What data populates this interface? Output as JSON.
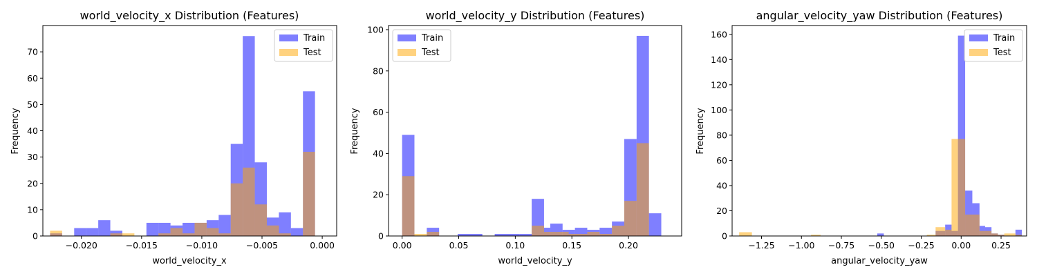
{
  "figure": {
    "train_color": "#0000ff",
    "test_color": "#ffa500"
  },
  "chart_data": [
    {
      "type": "histogram",
      "title": "world_velocity_x Distribution (Features)",
      "xlabel": "world_velocity_x",
      "ylabel": "Frequency",
      "xlim": [
        -0.0232,
        0.0012
      ],
      "ylim": [
        0,
        80
      ],
      "xticks": [
        -0.02,
        -0.015,
        -0.01,
        -0.005,
        0.0
      ],
      "xtick_labels": [
        "−0.020",
        "−0.015",
        "−0.010",
        "−0.005",
        "0.000"
      ],
      "yticks": [
        0,
        10,
        20,
        30,
        40,
        50,
        60,
        70
      ],
      "legend": "top-right",
      "series": [
        {
          "name": "Train",
          "color": "#0000ff",
          "opacity": 0.5,
          "bins": [
            [
              -0.0226,
              -0.0216,
              1
            ],
            [
              -0.0216,
              -0.0206,
              0
            ],
            [
              -0.0206,
              -0.0196,
              3
            ],
            [
              -0.0196,
              -0.0186,
              3
            ],
            [
              -0.0186,
              -0.0176,
              6
            ],
            [
              -0.0176,
              -0.0166,
              2
            ],
            [
              -0.0166,
              -0.0156,
              0
            ],
            [
              -0.0156,
              -0.0146,
              0
            ],
            [
              -0.0146,
              -0.0136,
              5
            ],
            [
              -0.0136,
              -0.0126,
              5
            ],
            [
              -0.0126,
              -0.0116,
              4
            ],
            [
              -0.0116,
              -0.0106,
              5
            ],
            [
              -0.0106,
              -0.0096,
              5
            ],
            [
              -0.0096,
              -0.0086,
              6
            ],
            [
              -0.0086,
              -0.0076,
              8
            ],
            [
              -0.0076,
              -0.0066,
              35
            ],
            [
              -0.0066,
              -0.0056,
              76
            ],
            [
              -0.0056,
              -0.0046,
              28
            ],
            [
              -0.0046,
              -0.0036,
              7
            ],
            [
              -0.0036,
              -0.0026,
              9
            ],
            [
              -0.0026,
              -0.0016,
              3
            ],
            [
              -0.0016,
              -0.0006,
              55
            ]
          ]
        },
        {
          "name": "Test",
          "color": "#ffa500",
          "opacity": 0.5,
          "bins": [
            [
              -0.0226,
              -0.0216,
              2
            ],
            [
              -0.0176,
              -0.0156,
              1
            ],
            [
              -0.0136,
              -0.0126,
              1
            ],
            [
              -0.0126,
              -0.0116,
              3
            ],
            [
              -0.0116,
              -0.0106,
              1
            ],
            [
              -0.0106,
              -0.0096,
              5
            ],
            [
              -0.0096,
              -0.0086,
              3
            ],
            [
              -0.0086,
              -0.0076,
              1
            ],
            [
              -0.0076,
              -0.0066,
              20
            ],
            [
              -0.0066,
              -0.0056,
              26
            ],
            [
              -0.0056,
              -0.0046,
              12
            ],
            [
              -0.0046,
              -0.0036,
              4
            ],
            [
              -0.0036,
              -0.0026,
              1
            ],
            [
              -0.0016,
              -0.0006,
              32
            ]
          ]
        }
      ]
    },
    {
      "type": "histogram",
      "title": "world_velocity_y Distribution (Features)",
      "xlabel": "world_velocity_y",
      "ylabel": "Frequency",
      "xlim": [
        -0.012,
        0.247
      ],
      "ylim": [
        0,
        102
      ],
      "xticks": [
        0.0,
        0.05,
        0.1,
        0.15,
        0.2
      ],
      "xtick_labels": [
        "0.00",
        "0.05",
        "0.10",
        "0.15",
        "0.20"
      ],
      "yticks": [
        0,
        20,
        40,
        60,
        80,
        100
      ],
      "legend": "top-left",
      "series": [
        {
          "name": "Train",
          "color": "#0000ff",
          "opacity": 0.5,
          "bins": [
            [
              0.0,
              0.0109,
              49
            ],
            [
              0.0218,
              0.0327,
              4
            ],
            [
              0.0491,
              0.0709,
              1
            ],
            [
              0.0818,
              0.1036,
              1
            ],
            [
              0.1036,
              0.1145,
              1
            ],
            [
              0.1145,
              0.1254,
              18
            ],
            [
              0.1254,
              0.1309,
              4
            ],
            [
              0.1309,
              0.1418,
              6
            ],
            [
              0.1418,
              0.1527,
              3
            ],
            [
              0.1527,
              0.1636,
              4
            ],
            [
              0.1636,
              0.1745,
              3
            ],
            [
              0.1745,
              0.1854,
              4
            ],
            [
              0.1854,
              0.1963,
              7
            ],
            [
              0.1963,
              0.2072,
              47
            ],
            [
              0.2072,
              0.2181,
              97
            ],
            [
              0.2181,
              0.229,
              11
            ]
          ]
        },
        {
          "name": "Test",
          "color": "#ffa500",
          "opacity": 0.5,
          "bins": [
            [
              0.0,
              0.0109,
              29
            ],
            [
              0.0109,
              0.0218,
              1
            ],
            [
              0.0218,
              0.0327,
              2
            ],
            [
              0.1145,
              0.1254,
              5
            ],
            [
              0.1254,
              0.1363,
              2
            ],
            [
              0.1363,
              0.1472,
              2
            ],
            [
              0.1472,
              0.1636,
              1
            ],
            [
              0.1636,
              0.1745,
              2
            ],
            [
              0.1745,
              0.1854,
              1
            ],
            [
              0.1854,
              0.1963,
              5
            ],
            [
              0.1963,
              0.2072,
              17
            ],
            [
              0.2072,
              0.2181,
              45
            ]
          ]
        }
      ]
    },
    {
      "type": "histogram",
      "title": "angular_velocity_yaw Distribution (Features)",
      "xlabel": "angular_velocity_yaw",
      "ylabel": "Frequency",
      "xlim": [
        -1.434,
        0.41
      ],
      "ylim": [
        0,
        167
      ],
      "xticks": [
        -1.25,
        -1.0,
        -0.75,
        -0.5,
        -0.25,
        0.0,
        0.25
      ],
      "xtick_labels": [
        "−1.25",
        "−1.00",
        "−0.75",
        "−0.50",
        "−0.25",
        "0.00",
        "0.25"
      ],
      "yticks": [
        0,
        20,
        40,
        60,
        80,
        100,
        120,
        140,
        160
      ],
      "legend": "top-right",
      "series": [
        {
          "name": "Train",
          "color": "#0000ff",
          "opacity": 0.5,
          "bins": [
            [
              -0.525,
              -0.484,
              2
            ],
            [
              -0.16,
              -0.1,
              4
            ],
            [
              -0.1,
              -0.06,
              9
            ],
            [
              -0.06,
              -0.02,
              4
            ],
            [
              -0.02,
              0.025,
              159
            ],
            [
              0.025,
              0.07,
              36
            ],
            [
              0.07,
              0.115,
              26
            ],
            [
              0.115,
              0.15,
              8
            ],
            [
              0.15,
              0.19,
              7
            ],
            [
              0.19,
              0.23,
              2
            ],
            [
              0.23,
              0.27,
              1
            ],
            [
              0.34,
              0.38,
              5
            ]
          ]
        },
        {
          "name": "Test",
          "color": "#ffa500",
          "opacity": 0.5,
          "bins": [
            [
              -1.39,
              -1.31,
              3
            ],
            [
              -0.94,
              -0.88,
              1
            ],
            [
              -0.215,
              -0.16,
              1
            ],
            [
              -0.16,
              -0.1,
              7
            ],
            [
              -0.1,
              -0.06,
              5
            ],
            [
              -0.06,
              -0.02,
              77
            ],
            [
              -0.02,
              0.025,
              77
            ],
            [
              0.025,
              0.07,
              17
            ],
            [
              0.07,
              0.115,
              17
            ],
            [
              0.115,
              0.15,
              4
            ],
            [
              0.15,
              0.19,
              4
            ],
            [
              0.19,
              0.23,
              2
            ],
            [
              0.23,
              0.27,
              1
            ],
            [
              0.27,
              0.34,
              2
            ],
            [
              0.34,
              0.38,
              1
            ]
          ]
        }
      ]
    }
  ]
}
